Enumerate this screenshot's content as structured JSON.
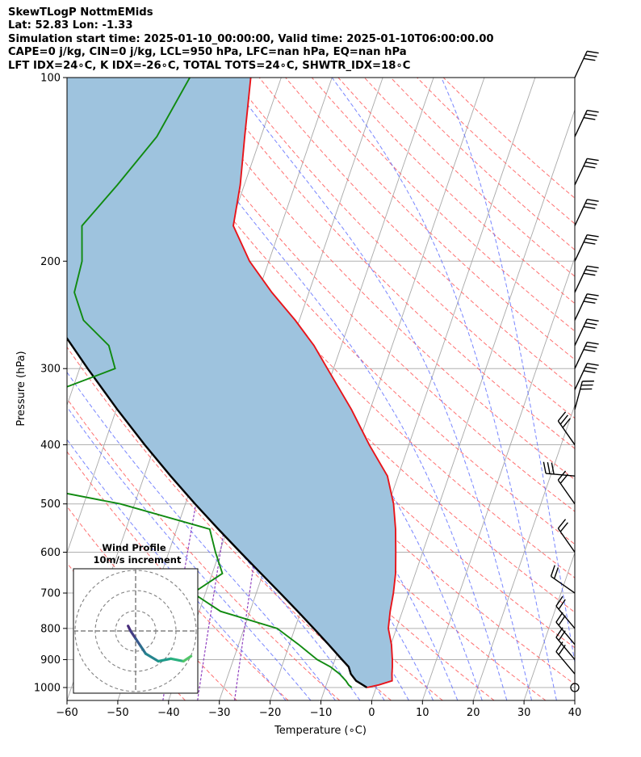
{
  "title_lines": [
    "SkewTLogP NottmEMids",
    "Lat: 52.83   Lon: -1.33",
    "Simulation start time: 2025-01-10_00:00:00, Valid time: 2025-01-10T06:00:00.00",
    "CAPE=0 j/kg, CIN=0 j/kg, LCL=950 hPa, LFC=nan hPa, EQ=nan hPa",
    "LFT IDX=24∘C, K IDX=-26∘C, TOTAL TOTS=24∘C, SHWTR_IDX=18∘C"
  ],
  "colors": {
    "temperature": "#e8141a",
    "dewpoint": "#108a10",
    "parcel": "#000000",
    "shading": "#9ec3de",
    "dry_adiabat": "#ff6060",
    "moist_adiabat": "#6070ff",
    "isotherm": "#a8a8a8",
    "mixing_ratio": "#9040c0"
  },
  "chart_data": {
    "type": "line",
    "chart_kind": "skew-T log-P",
    "xlabel": "Temperature (∘C)",
    "ylabel": "Pressure (hPa)",
    "xlim": [
      -60,
      40
    ],
    "ylim": [
      1050,
      100
    ],
    "y_scale": "log",
    "x_ticks": [
      "−60",
      "−50",
      "−40",
      "−30",
      "−20",
      "−10",
      "0",
      "10",
      "20",
      "30",
      "40"
    ],
    "x_tick_values": [
      -60,
      -50,
      -40,
      -30,
      -20,
      -10,
      0,
      10,
      20,
      30,
      40
    ],
    "y_ticks": [
      "100",
      "200",
      "300",
      "400",
      "500",
      "600",
      "700",
      "800",
      "900",
      "1000"
    ],
    "y_tick_values": [
      100,
      200,
      300,
      400,
      500,
      600,
      700,
      800,
      900,
      1000
    ],
    "grid": true,
    "series": [
      {
        "key": "temperature",
        "pressure": [
          1000,
          990,
          975,
          950,
          925,
          900,
          850,
          800,
          750,
          700,
          650,
          600,
          550,
          500,
          450,
          400,
          350,
          300,
          275,
          250,
          225,
          200,
          175,
          150,
          125,
          100
        ],
        "temp_c": [
          -1.8,
          0.4,
          2.7,
          2.2,
          1.8,
          1.3,
          0.1,
          -1.6,
          -2.4,
          -3.0,
          -3.9,
          -5.3,
          -6.9,
          -9.0,
          -12.1,
          -17.8,
          -23.7,
          -31.2,
          -35.4,
          -40.8,
          -47.3,
          -53.8,
          -59.4,
          -60.8,
          -63.2,
          -66.0
        ]
      },
      {
        "key": "dewpoint",
        "pressure": [
          1000,
          990,
          975,
          950,
          925,
          900,
          850,
          800,
          750,
          700,
          650,
          600,
          550,
          500,
          450,
          400,
          350,
          300,
          275,
          250,
          225,
          200,
          175,
          150,
          125,
          100
        ],
        "temp_c": [
          -4.8,
          -5.6,
          -6.4,
          -8.1,
          -10.4,
          -13.5,
          -18.2,
          -23.5,
          -35.8,
          -42.5,
          -38.0,
          -40.8,
          -43.5,
          -62.8,
          -93.0,
          -88.0,
          -91.5,
          -73.0,
          -75.8,
          -82.5,
          -86.2,
          -86.8,
          -89.2,
          -85.0,
          -80.5,
          -78.0
        ]
      },
      {
        "key": "parcel",
        "pressure": [
          1000,
          975,
          950,
          925,
          900,
          850,
          800,
          750,
          700,
          650,
          600,
          550,
          500,
          450,
          400,
          350,
          300,
          250,
          200,
          150,
          100
        ],
        "temp_c": [
          -1.8,
          -4.4,
          -5.9,
          -6.8,
          -8.6,
          -12.3,
          -16.3,
          -20.6,
          -25.3,
          -30.4,
          -35.9,
          -41.8,
          -48.1,
          -54.8,
          -62.0,
          -69.8,
          -78.4,
          -88.2,
          -99.8,
          -114.5,
          -136.0
        ]
      }
    ],
    "wind_barbs_pressure": [
      100,
      125,
      150,
      175,
      200,
      225,
      250,
      275,
      300,
      325,
      350,
      400,
      450,
      500,
      600,
      700,
      800,
      850,
      900,
      950,
      1000
    ],
    "wind_profile": {
      "title": "Wind Profile",
      "subtitle": "10m/s increment",
      "hodograph_u": [
        -3,
        -2,
        0,
        2,
        4,
        9,
        14,
        19,
        22
      ],
      "hodograph_v": [
        2,
        0,
        -3,
        -6,
        -9,
        -12,
        -11,
        -12,
        -10
      ]
    }
  }
}
